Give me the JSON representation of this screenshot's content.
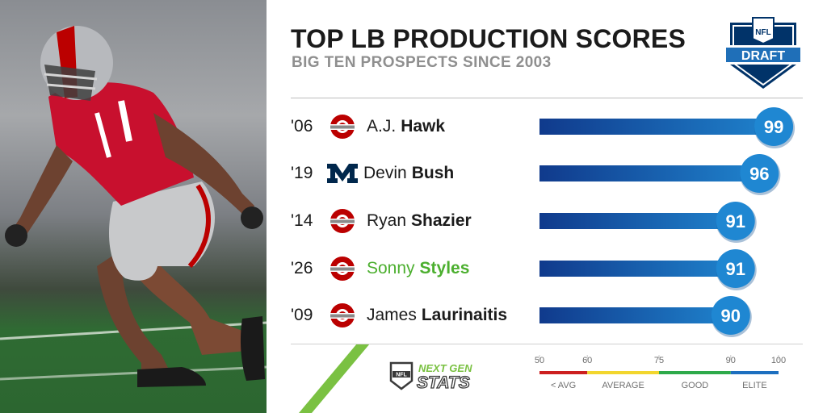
{
  "header": {
    "title": "TOP LB PRODUCTION SCORES",
    "subtitle": "BIG TEN PROSPECTS SINCE 2003",
    "draft_logo_text": "DRAFT",
    "nfl_text": "NFL"
  },
  "colors": {
    "bar_start": "#103a8c",
    "bar_end": "#1f82cc",
    "badge": "#1f87d2",
    "highlight": "#4caf2f",
    "ohio_state": "#bb0000",
    "michigan": "#00274c",
    "green_stripe": "#7ac142"
  },
  "chart_data": {
    "type": "bar",
    "orientation": "horizontal",
    "title": "TOP LB PRODUCTION SCORES",
    "subtitle": "BIG TEN PROSPECTS SINCE 2003",
    "categories": [
      "'06 A.J. Hawk",
      "'19 Devin Bush",
      "'14 Ryan Shazier",
      "'26 Sonny Styles",
      "'09 James Laurinaitis"
    ],
    "rows": [
      {
        "year": "'06",
        "first": "A.J.",
        "last": "Hawk",
        "school": "Ohio State",
        "school_icon": "ohio-state-logo-icon",
        "value": 99,
        "label": "99",
        "highlight": false
      },
      {
        "year": "'19",
        "first": "Devin",
        "last": "Bush",
        "school": "Michigan",
        "school_icon": "michigan-m-logo-icon",
        "value": 96,
        "label": "96",
        "highlight": false
      },
      {
        "year": "'14",
        "first": "Ryan",
        "last": "Shazier",
        "school": "Ohio State",
        "school_icon": "ohio-state-logo-icon",
        "value": 91,
        "label": "91",
        "highlight": false
      },
      {
        "year": "'26",
        "first": "Sonny",
        "last": "Styles",
        "school": "Ohio State",
        "school_icon": "ohio-state-logo-icon",
        "value": 91,
        "label": "91",
        "highlight": true
      },
      {
        "year": "'09",
        "first": "James",
        "last": "Laurinaitis",
        "school": "Ohio State",
        "school_icon": "ohio-state-logo-icon",
        "value": 90,
        "label": "90",
        "highlight": false
      }
    ],
    "values": [
      99,
      96,
      91,
      91,
      90
    ],
    "xlim": [
      50,
      100
    ],
    "grid": false,
    "legend_scale": {
      "ticks": [
        "50",
        "60",
        "75",
        "90",
        "100"
      ],
      "tick_values": [
        50,
        60,
        75,
        90,
        100
      ],
      "bands": [
        {
          "label": "< AVG",
          "from": 50,
          "to": 60,
          "color": "#cc1f1f"
        },
        {
          "label": "AVERAGE",
          "from": 60,
          "to": 75,
          "color": "#f2d62e"
        },
        {
          "label": "GOOD",
          "from": 75,
          "to": 90,
          "color": "#2eaa4a"
        },
        {
          "label": "ELITE",
          "from": 90,
          "to": 100,
          "color": "#1d6fbf"
        }
      ]
    }
  },
  "footer": {
    "brand_line1": "NEXT GEN",
    "brand_line2": "STATS"
  }
}
